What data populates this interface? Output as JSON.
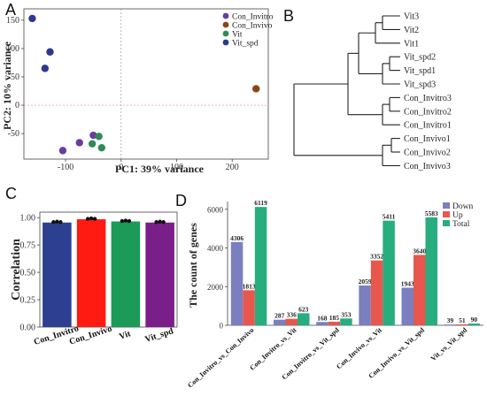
{
  "panels": {
    "a": "A",
    "b": "B",
    "c": "C",
    "d": "D"
  },
  "chart_data": [
    {
      "type": "scatter",
      "xlabel": "PC1: 39% variance",
      "ylabel": "PC2: 10% variance",
      "xlim": [
        -175,
        265
      ],
      "ylim": [
        -95,
        170
      ],
      "xticks": [
        -100,
        0,
        100,
        200
      ],
      "yticks": [
        -50,
        0,
        50,
        100,
        150
      ],
      "grid": false,
      "legend_position": "top-right",
      "series": [
        {
          "name": "Con_Invitro",
          "color": "#6a3d9a",
          "points": [
            [
              -75,
              -66
            ],
            [
              -50,
              -53
            ],
            [
              -105,
              -80
            ]
          ]
        },
        {
          "name": "Con_Invivo",
          "color": "#8b4513",
          "points": [
            [
              243,
              29
            ]
          ]
        },
        {
          "name": "Vit",
          "color": "#2e8b57",
          "points": [
            [
              -40,
              -55
            ],
            [
              -35,
              -75
            ],
            [
              -52,
              -68
            ]
          ]
        },
        {
          "name": "Vit_spd",
          "color": "#2b3a8c",
          "points": [
            [
              -160,
              153
            ],
            [
              -128,
              94
            ],
            [
              -137,
              65
            ]
          ]
        }
      ]
    },
    {
      "type": "dendrogram",
      "leaves": [
        "Vit3",
        "Vit2",
        "Vit1",
        "Vit_spd2",
        "Vit_spd1",
        "Vit_spd3",
        "Con_Invitro3",
        "Con_Invitro2",
        "Con_Invitro1",
        "Con_Invivo1",
        "Con_Invivo2",
        "Con_Invivo3"
      ]
    },
    {
      "type": "bar",
      "ylabel": "Correlation",
      "ylim": [
        0,
        1.05
      ],
      "yticks": [
        0.0,
        0.25,
        0.5,
        0.75,
        1.0
      ],
      "categories": [
        "Con_Invitro",
        "Con_Invivo",
        "Vit",
        "Vit_spd"
      ],
      "values": [
        0.955,
        0.985,
        0.965,
        0.955
      ],
      "colors": [
        "#2d3f91",
        "#ff1a12",
        "#1c9a58",
        "#7a1f8a"
      ]
    },
    {
      "type": "bar",
      "ylabel": "The count of genes",
      "ylim": [
        0,
        6400
      ],
      "yticks": [
        0,
        2000,
        4000,
        6000
      ],
      "legend_position": "top-right",
      "categories": [
        "Con_Invitro_vs_Con_Invivo",
        "Con_Invitro_vs_Vit",
        "Con_Invitro_vs_Vit_spd",
        "Con_Invivo_vs_Vit",
        "Con_Invivo_vs_Vit_spd",
        "Vit_vs_Vit_spd"
      ],
      "series": [
        {
          "name": "Down",
          "color": "#7b7fbf",
          "values": [
            4306,
            287,
            168,
            2059,
            1943,
            39
          ]
        },
        {
          "name": "Up",
          "color": "#e8574d",
          "values": [
            1813,
            336,
            185,
            3352,
            3640,
            51
          ]
        },
        {
          "name": "Total",
          "color": "#27ad7e",
          "values": [
            6119,
            623,
            353,
            5411,
            5583,
            90
          ]
        }
      ]
    }
  ]
}
